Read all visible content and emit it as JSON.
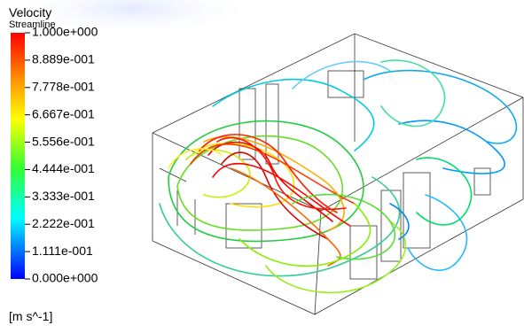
{
  "legend": {
    "title": "Velocity",
    "subtitle": "Streamline",
    "ticks": [
      "1.000e+000",
      "8.889e-001",
      "7.778e-001",
      "6.667e-001",
      "5.556e-001",
      "4.444e-001",
      "3.333e-001",
      "2.222e-001",
      "1.111e-001",
      "0.000e+000"
    ],
    "units": "[m s^-1]"
  }
}
